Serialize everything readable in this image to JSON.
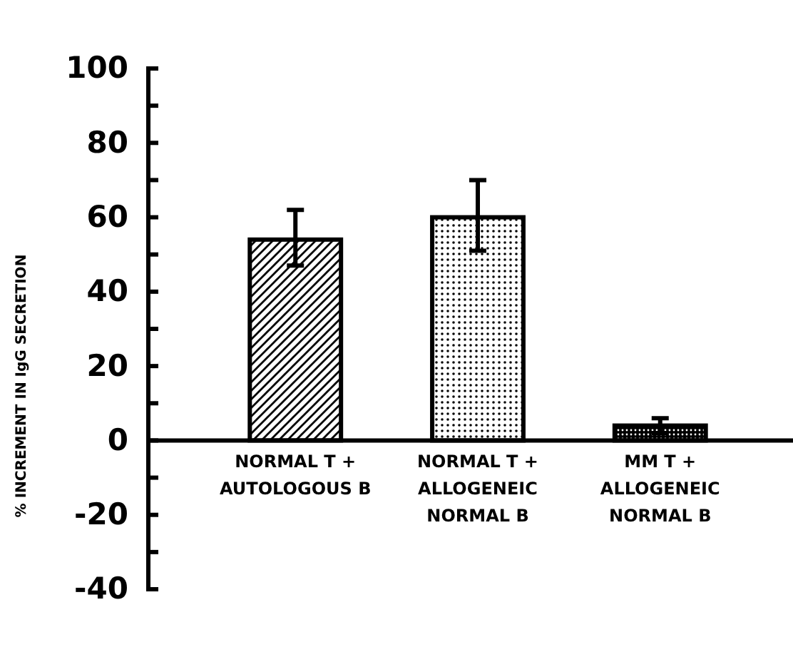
{
  "chart_data": {
    "type": "bar",
    "ylabel": "% INCREMENT IN IgG SECRETION",
    "categories": [
      "NORMAL T +\nAUTOLOGOUS B",
      "NORMAL T +\nALLOGENEIC\nNORMAL B",
      "MM T +\nALLOGENEIC\nNORMAL B"
    ],
    "values": [
      54,
      60,
      4
    ],
    "errors": [
      [
        47,
        62
      ],
      [
        51,
        70
      ],
      2
    ],
    "colors": [
      "#000000",
      "#000000",
      "#000000"
    ],
    "ylim": [
      -40,
      100
    ],
    "yticks": [
      -40,
      {
        "value": -30,
        "label": null
      },
      -20,
      {
        "value": -10,
        "label": null
      },
      0,
      {
        "value": 10,
        "label": null
      },
      20,
      {
        "value": 30,
        "label": null
      },
      40,
      {
        "value": 50,
        "label": null
      },
      60,
      {
        "value": 70,
        "label": null
      },
      80,
      {
        "value": 90,
        "label": null
      },
      100
    ],
    "grid": false
  }
}
